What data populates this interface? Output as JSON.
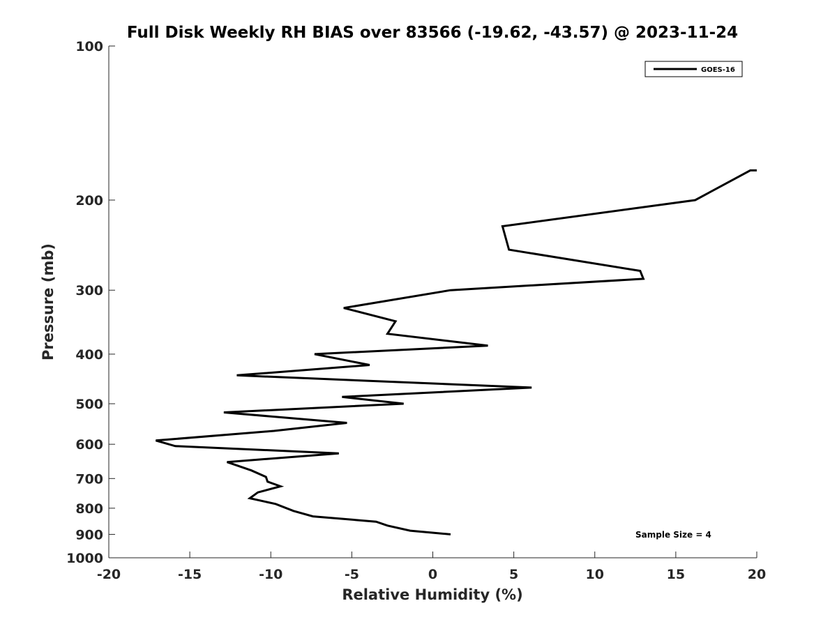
{
  "chart_data": {
    "type": "line",
    "title": "Full Disk Weekly RH BIAS over 83566 (-19.62, -43.57) @ 2023-11-24",
    "xlabel": "Relative Humidity (%)",
    "ylabel": "Pressure (mb)",
    "xlim": [
      -20,
      20
    ],
    "ylim": [
      100,
      1000
    ],
    "y_scale": "log",
    "y_reversed": true,
    "grid": false,
    "x_ticks": [
      "-20",
      "-15",
      "-10",
      "-5",
      "0",
      "5",
      "10",
      "15",
      "20"
    ],
    "x_tick_values": [
      -20,
      -15,
      -10,
      -5,
      0,
      5,
      10,
      15,
      20
    ],
    "y_ticks": [
      "100",
      "200",
      "300",
      "400",
      "500",
      "600",
      "700",
      "800",
      "900",
      "1000"
    ],
    "y_tick_values": [
      100,
      200,
      300,
      400,
      500,
      600,
      700,
      800,
      900,
      1000
    ],
    "legend_position": "top-right",
    "annotation": "Sample Size = 4",
    "series": [
      {
        "name": "GOES-16",
        "color": "#000000",
        "points": [
          {
            "x": 20.0,
            "p": 175
          },
          {
            "x": 19.6,
            "p": 175
          },
          {
            "x": 16.2,
            "p": 200
          },
          {
            "x": 4.3,
            "p": 225
          },
          {
            "x": 4.7,
            "p": 250
          },
          {
            "x": 12.8,
            "p": 275
          },
          {
            "x": 13.0,
            "p": 285
          },
          {
            "x": 1.1,
            "p": 300
          },
          {
            "x": -5.5,
            "p": 325
          },
          {
            "x": -2.3,
            "p": 345
          },
          {
            "x": -2.8,
            "p": 365
          },
          {
            "x": 3.4,
            "p": 385
          },
          {
            "x": -7.3,
            "p": 400
          },
          {
            "x": -3.9,
            "p": 420
          },
          {
            "x": -12.1,
            "p": 440
          },
          {
            "x": 6.1,
            "p": 465
          },
          {
            "x": -5.6,
            "p": 485
          },
          {
            "x": -1.8,
            "p": 500
          },
          {
            "x": -12.9,
            "p": 520
          },
          {
            "x": -5.3,
            "p": 545
          },
          {
            "x": -9.8,
            "p": 565
          },
          {
            "x": -17.1,
            "p": 590
          },
          {
            "x": -15.9,
            "p": 605
          },
          {
            "x": -5.8,
            "p": 625
          },
          {
            "x": -12.7,
            "p": 650
          },
          {
            "x": -11.2,
            "p": 675
          },
          {
            "x": -10.3,
            "p": 695
          },
          {
            "x": -10.2,
            "p": 710
          },
          {
            "x": -9.4,
            "p": 725
          },
          {
            "x": -10.8,
            "p": 745
          },
          {
            "x": -11.3,
            "p": 765
          },
          {
            "x": -9.7,
            "p": 785
          },
          {
            "x": -8.6,
            "p": 810
          },
          {
            "x": -7.4,
            "p": 830
          },
          {
            "x": -3.5,
            "p": 850
          },
          {
            "x": -2.8,
            "p": 865
          },
          {
            "x": -1.4,
            "p": 885
          },
          {
            "x": 1.1,
            "p": 900
          }
        ]
      }
    ]
  }
}
